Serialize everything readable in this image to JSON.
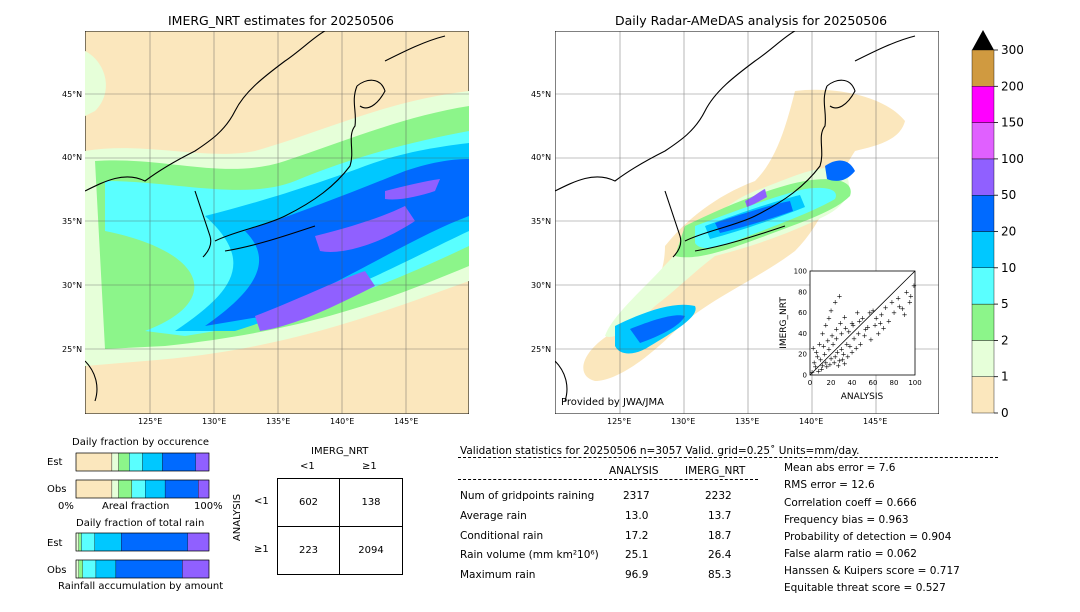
{
  "left_map": {
    "title": "IMERG_NRT estimates for 20250506",
    "lat_labels": [
      "45°N",
      "40°N",
      "35°N",
      "30°N",
      "25°N"
    ],
    "lon_labels": [
      "125°E",
      "130°E",
      "135°E",
      "140°E",
      "145°E"
    ]
  },
  "right_map": {
    "title": "Daily Radar-AMeDAS analysis for 20250506",
    "lat_labels": [
      "45°N",
      "40°N",
      "35°N",
      "30°N",
      "25°N"
    ],
    "lon_labels": [
      "125°E",
      "130°E",
      "135°E",
      "140°E",
      "145°E"
    ],
    "credit": "Provided by JWA/JMA"
  },
  "colorbar": {
    "ticks": [
      "0",
      "1",
      "2",
      "5",
      "10",
      "20",
      "50",
      "100",
      "150",
      "200",
      "300"
    ],
    "colors": [
      "#fbe7bd",
      "#e6ffd9",
      "#8cf58a",
      "#5affff",
      "#00c8ff",
      "#006aff",
      "#9060ff",
      "#e060ff",
      "#ff00ff",
      "#d09a40"
    ],
    "extend_color": "#000000"
  },
  "occurrence": {
    "title": "Daily fraction by occurence",
    "est_label": "Est",
    "obs_label": "Obs",
    "axis_left": "0%",
    "axis_mid": "Areal fraction",
    "axis_right": "100%"
  },
  "amount": {
    "title": "Daily fraction of total rain",
    "est_label": "Est",
    "obs_label": "Obs",
    "footer": "Rainfall accumulation by amount"
  },
  "contingency": {
    "col_title": "IMERG_NRT",
    "col_lt": "<1",
    "col_ge": "≥1",
    "row_title": "ANALYSIS",
    "row_lt": "<1",
    "row_ge": "≥1",
    "a": "602",
    "b": "138",
    "c": "223",
    "d": "2094"
  },
  "validation": {
    "header": "Validation statistics for 20250506  n=3057 Valid. grid=0.25˚ Units=mm/day.",
    "col_analysis": "ANALYSIS",
    "col_imerg": "IMERG_NRT",
    "rows": [
      {
        "label": "Num of gridpoints raining",
        "analysis": "2317",
        "imerg": "2232"
      },
      {
        "label": "Average rain",
        "analysis": "13.0",
        "imerg": "13.7"
      },
      {
        "label": "Conditional rain",
        "analysis": "17.2",
        "imerg": "18.7"
      },
      {
        "label": "Rain volume (mm km²10⁶)",
        "analysis": "25.1",
        "imerg": "26.4"
      },
      {
        "label": "Maximum rain",
        "analysis": "96.9",
        "imerg": "85.3"
      }
    ],
    "scores": [
      "Mean abs error =    7.6",
      "RMS error =   12.6",
      "Correlation coeff =  0.666",
      "Frequency bias =  0.963",
      "Probability of detection =  0.904",
      "False alarm ratio =  0.062",
      "Hanssen & Kuipers score =  0.717",
      "Equitable threat score =  0.527"
    ]
  },
  "chart_data": [
    {
      "type": "scatter",
      "title": "",
      "xlabel": "ANALYSIS",
      "ylabel": "IMERG_NRT",
      "xlim": [
        0,
        100
      ],
      "ylim": [
        0,
        100
      ],
      "xticks": [
        "0",
        "20",
        "40",
        "60",
        "80",
        "100"
      ],
      "yticks": [
        "0",
        "20",
        "40",
        "60",
        "80",
        "100"
      ],
      "one_to_one_line": true,
      "points": [
        [
          2,
          3
        ],
        [
          5,
          8
        ],
        [
          8,
          4
        ],
        [
          10,
          15
        ],
        [
          12,
          9
        ],
        [
          14,
          20
        ],
        [
          15,
          12
        ],
        [
          18,
          25
        ],
        [
          20,
          16
        ],
        [
          22,
          30
        ],
        [
          24,
          18
        ],
        [
          25,
          35
        ],
        [
          26,
          22
        ],
        [
          28,
          14
        ],
        [
          30,
          40
        ],
        [
          30,
          25
        ],
        [
          32,
          20
        ],
        [
          34,
          45
        ],
        [
          35,
          30
        ],
        [
          36,
          18
        ],
        [
          38,
          28
        ],
        [
          40,
          50
        ],
        [
          40,
          22
        ],
        [
          42,
          35
        ],
        [
          44,
          26
        ],
        [
          45,
          60
        ],
        [
          46,
          40
        ],
        [
          48,
          30
        ],
        [
          50,
          55
        ],
        [
          52,
          38
        ],
        [
          55,
          46
        ],
        [
          58,
          34
        ],
        [
          60,
          62
        ],
        [
          62,
          48
        ],
        [
          65,
          40
        ],
        [
          68,
          58
        ],
        [
          70,
          45
        ],
        [
          75,
          52
        ],
        [
          80,
          60
        ],
        [
          85,
          66
        ],
        [
          90,
          58
        ],
        [
          95,
          70
        ],
        [
          6,
          22
        ],
        [
          9,
          30
        ],
        [
          12,
          40
        ],
        [
          15,
          48
        ],
        [
          18,
          55
        ],
        [
          20,
          62
        ],
        [
          24,
          70
        ],
        [
          28,
          76
        ],
        [
          4,
          12
        ],
        [
          7,
          18
        ],
        [
          3,
          26
        ],
        [
          11,
          6
        ],
        [
          16,
          8
        ],
        [
          19,
          10
        ],
        [
          23,
          12
        ],
        [
          27,
          9
        ],
        [
          31,
          15
        ],
        [
          33,
          11
        ],
        [
          13,
          28
        ],
        [
          17,
          33
        ],
        [
          21,
          38
        ],
        [
          25,
          44
        ],
        [
          29,
          50
        ],
        [
          33,
          56
        ],
        [
          37,
          42
        ],
        [
          41,
          48
        ],
        [
          47,
          52
        ],
        [
          53,
          44
        ],
        [
          57,
          60
        ],
        [
          63,
          55
        ],
        [
          67,
          50
        ],
        [
          72,
          65
        ],
        [
          78,
          70
        ],
        [
          84,
          74
        ],
        [
          88,
          64
        ],
        [
          92,
          80
        ],
        [
          96,
          76
        ],
        [
          99,
          86
        ]
      ]
    },
    {
      "type": "bar",
      "title": "Daily fraction by occurence",
      "orientation": "horizontal-stacked",
      "categories": [
        "Est",
        "Obs"
      ],
      "series": [
        {
          "values": [
            0.27,
            0.27
          ]
        },
        {
          "values": [
            0.05,
            0.05
          ]
        },
        {
          "values": [
            0.08,
            0.1
          ]
        },
        {
          "values": [
            0.1,
            0.1
          ]
        },
        {
          "values": [
            0.15,
            0.15
          ]
        },
        {
          "values": [
            0.25,
            0.25
          ]
        },
        {
          "values": [
            0.1,
            0.08
          ]
        }
      ]
    },
    {
      "type": "bar",
      "title": "Daily fraction of total rain",
      "orientation": "horizontal-stacked",
      "categories": [
        "Est",
        "Obs"
      ],
      "series": [
        {
          "values": [
            0.02,
            0.02
          ]
        },
        {
          "values": [
            0.02,
            0.03
          ]
        },
        {
          "values": [
            0.1,
            0.1
          ]
        },
        {
          "values": [
            0.2,
            0.15
          ]
        },
        {
          "values": [
            0.5,
            0.5
          ]
        },
        {
          "values": [
            0.16,
            0.2
          ]
        }
      ]
    }
  ]
}
